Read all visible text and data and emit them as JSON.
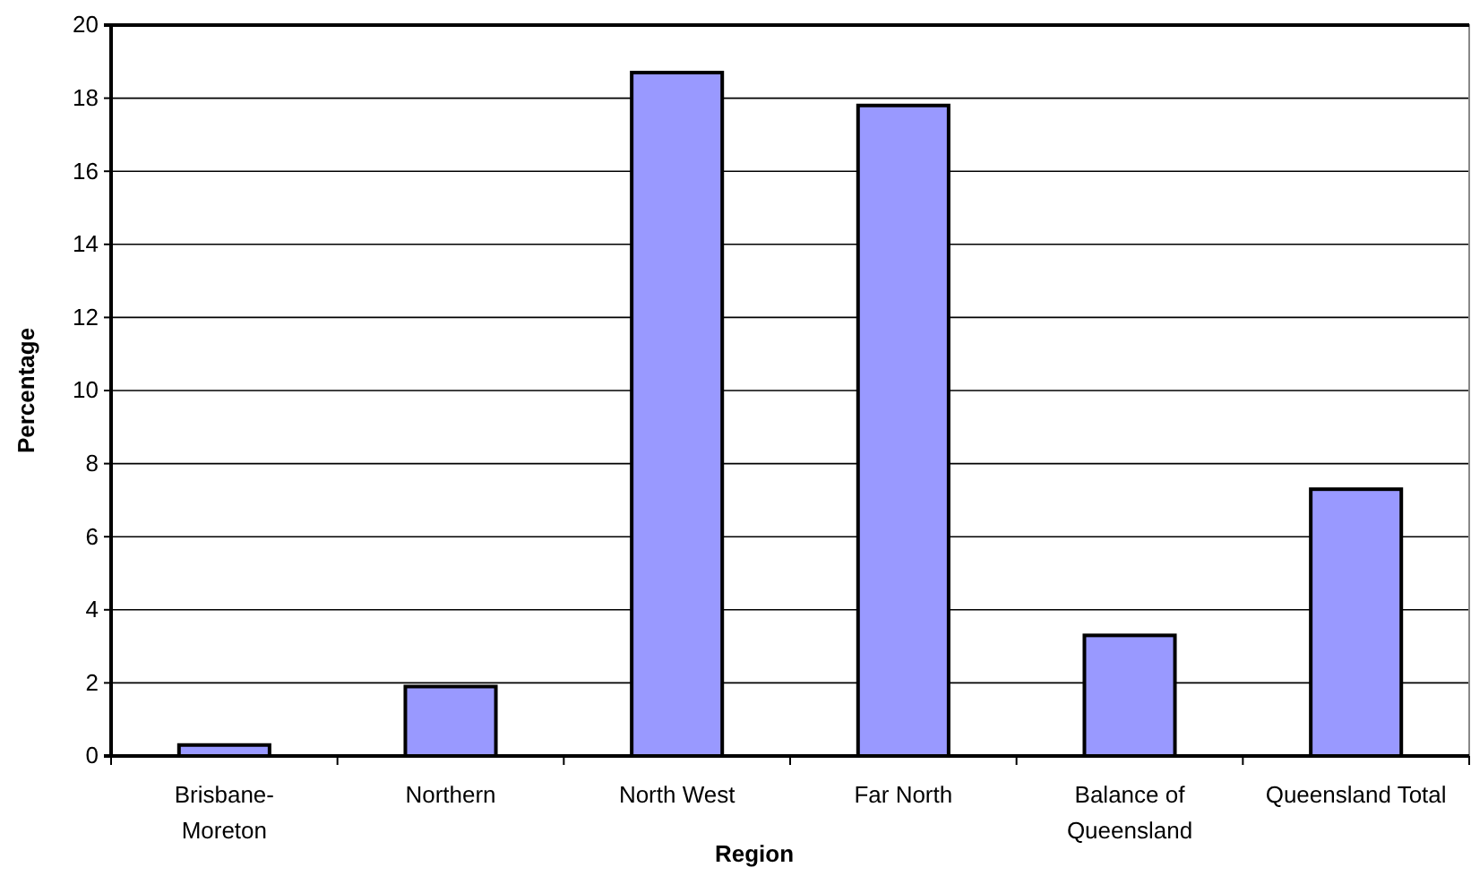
{
  "chart_data": {
    "type": "bar",
    "xlabel": "Region",
    "ylabel": "Percentage",
    "categories": [
      "Brisbane-Moreton",
      "Northern",
      "North West",
      "Far North",
      "Balance of Queensland",
      "Queensland Total"
    ],
    "values": [
      0.3,
      1.9,
      18.7,
      17.8,
      3.3,
      7.3
    ],
    "color": "#9999ff",
    "ylim": [
      0,
      20
    ],
    "yticks": [
      0,
      2,
      4,
      6,
      8,
      10,
      12,
      14,
      16,
      18,
      20
    ],
    "grid": "y"
  }
}
